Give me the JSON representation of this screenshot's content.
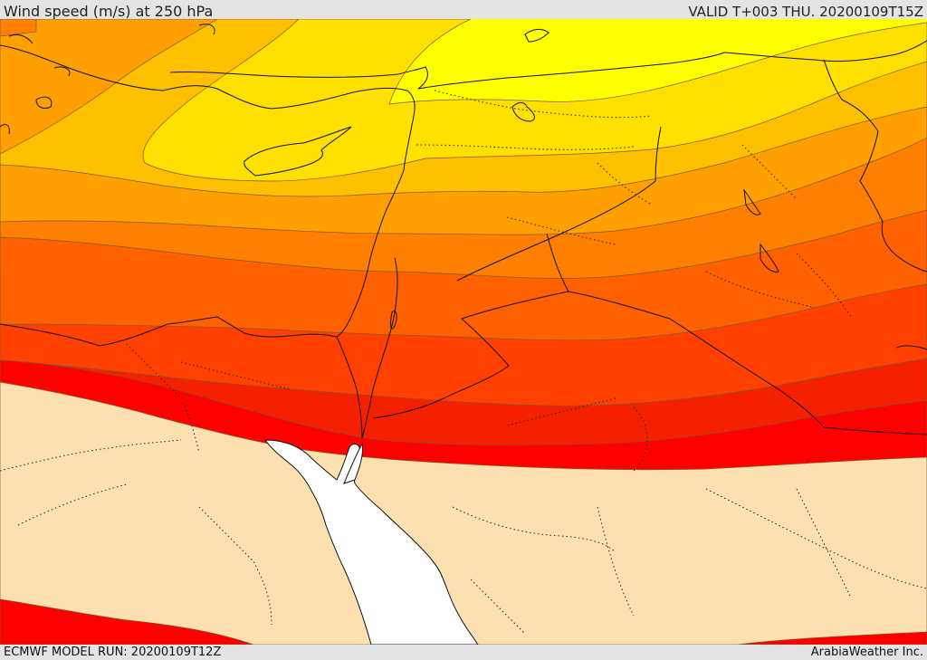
{
  "header": {
    "title": "Wind speed (m/s) at 250 hPa",
    "valid": "VALID T+003 THU. 20200109T15Z"
  },
  "footer": {
    "model_run": "ECMWF MODEL RUN: 20200109T12Z",
    "credit": "ArabiaWeather Inc."
  },
  "colors": {
    "yellow_max": "#ffff00",
    "gold": "#ffe000",
    "amber": "#ffc000",
    "orange_light": "#ffa000",
    "orange": "#ff8000",
    "orange_dark": "#ff6000",
    "red_orange": "#ff4000",
    "red_dark": "#f52000",
    "red": "#ff0000",
    "calm": "#fde0b0",
    "sea": "#ffffff",
    "border": "#111111"
  }
}
